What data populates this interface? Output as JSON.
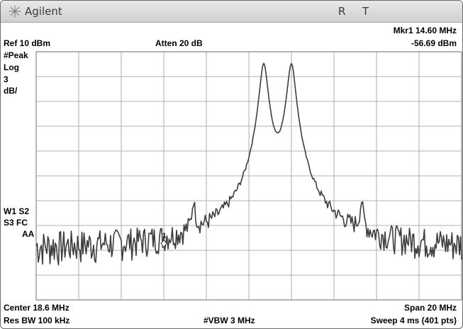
{
  "window": {
    "brand": "Agilent",
    "status_r": "R",
    "status_t": "T"
  },
  "marker": {
    "line1": "Mkr1  14.60 MHz",
    "line2": "-56.69 dBm",
    "label": "1"
  },
  "header": {
    "ref": "Ref 10 dBm",
    "atten": "Atten 20 dB"
  },
  "left_panel": {
    "detector": "#Peak",
    "scale_type": "Log",
    "scale_value": "3",
    "scale_unit": "dB/",
    "trace_line1": "W1 S2",
    "trace_line2": "S3  FC",
    "trace_line3": "AA"
  },
  "footer": {
    "center": "Center 18.6 MHz",
    "span": "Span 20 MHz",
    "res_bw": "Res BW 100 kHz",
    "vbw": "#VBW 3 MHz",
    "sweep": "Sweep 4 ms (401 pts)"
  },
  "colors": {
    "trace": "#3d3d3d",
    "grid": "#9a9a9a",
    "titlebar": "#d9d9d9"
  },
  "chart_data": {
    "type": "line",
    "xlim": [
      8.6,
      28.6
    ],
    "ylim": [
      -20,
      10
    ],
    "x_unit": "MHz",
    "y_unit": "dBm",
    "scale_db_per_div": 3,
    "divisions_x": 10,
    "divisions_y": 10,
    "grid": true,
    "noise_floor": -57.5,
    "peaks": [
      {
        "freq": 16.0,
        "level": -54.3,
        "width": 0.08
      },
      {
        "freq": 19.3,
        "level": -35.0,
        "width": 0.18
      },
      {
        "freq": 20.6,
        "level": -35.0,
        "width": 0.18
      },
      {
        "freq": 23.9,
        "level": -54.3,
        "width": 0.08
      }
    ],
    "marker": {
      "freq": 14.6,
      "level": -56.69
    }
  }
}
